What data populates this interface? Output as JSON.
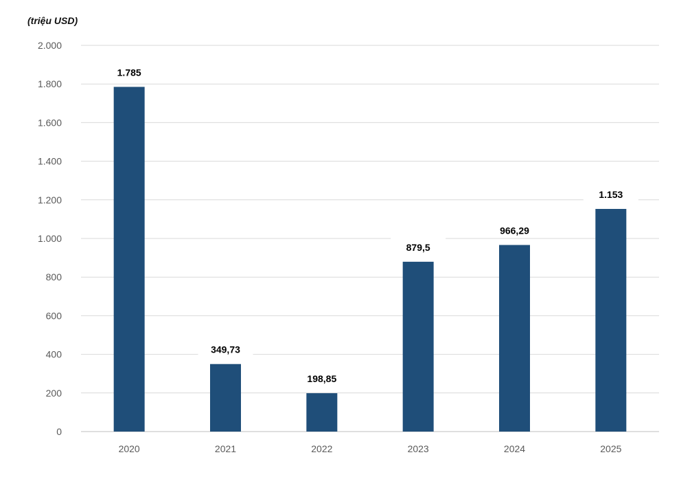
{
  "chart_data": {
    "type": "bar",
    "unit_label": "(triệu USD)",
    "categories": [
      "2020",
      "2021",
      "2022",
      "2023",
      "2024",
      "2025"
    ],
    "values": [
      1785,
      349.73,
      198.85,
      879.5,
      966.29,
      1153
    ],
    "data_labels": [
      "1.785",
      "349,73",
      "198,85",
      "879,5",
      "966,29",
      "1.153"
    ],
    "y_ticks": [
      0,
      200,
      400,
      600,
      800,
      1000,
      1200,
      1400,
      1600,
      1800,
      2000
    ],
    "y_tick_labels": [
      "0",
      "200",
      "400",
      "600",
      "800",
      "1.000",
      "1.200",
      "1.400",
      "1.600",
      "1.800",
      "2.000"
    ],
    "ylim": [
      0,
      2000
    ],
    "grid": true,
    "bar_color": "#1F4E79",
    "grid_color": "#D9D9D9"
  }
}
